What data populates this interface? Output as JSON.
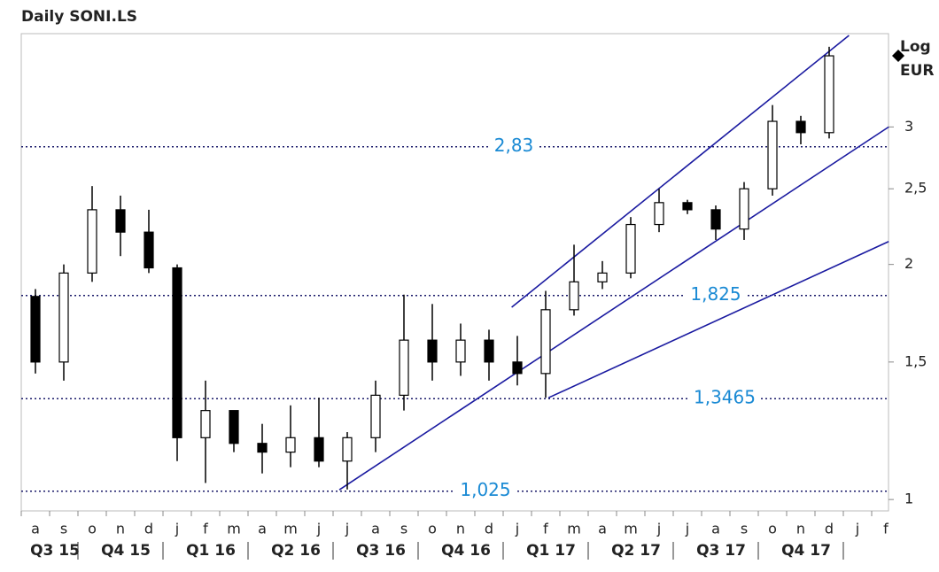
{
  "chart_data": {
    "type": "candlestick",
    "title": "Daily SONI.LS",
    "scale_label": "Log",
    "currency": "EUR",
    "log_scale": true,
    "categories": [
      "a",
      "s",
      "o",
      "n",
      "d",
      "j",
      "f",
      "m",
      "a",
      "m",
      "j",
      "j",
      "a",
      "s",
      "o",
      "n",
      "d",
      "j",
      "f",
      "m",
      "a",
      "m",
      "j",
      "j",
      "a",
      "s",
      "o",
      "n",
      "d",
      "j",
      "f"
    ],
    "quarters": [
      "Q3 15",
      "Q4 15",
      "Q1 16",
      "Q2 16",
      "Q3 16",
      "Q4 16",
      "Q1 17",
      "Q2 17",
      "Q3 17",
      "Q4 17"
    ],
    "series": {
      "open": [
        1.82,
        1.5,
        1.95,
        2.35,
        2.2,
        1.98,
        1.2,
        1.3,
        1.18,
        1.15,
        1.2,
        1.12,
        1.2,
        1.36,
        1.6,
        1.5,
        1.6,
        1.5,
        1.45,
        1.75,
        1.9,
        1.95,
        2.25,
        2.4,
        2.35,
        2.22,
        2.5,
        3.05,
        2.95,
        null,
        null
      ],
      "high": [
        1.86,
        2.0,
        2.52,
        2.45,
        2.35,
        2.0,
        1.42,
        1.3,
        1.25,
        1.32,
        1.35,
        1.22,
        1.42,
        1.83,
        1.78,
        1.68,
        1.65,
        1.62,
        1.85,
        2.12,
        2.02,
        2.3,
        2.5,
        2.42,
        2.38,
        2.55,
        3.2,
        3.1,
        3.8,
        null,
        null
      ],
      "low": [
        1.45,
        1.42,
        1.9,
        2.05,
        1.95,
        1.12,
        1.05,
        1.15,
        1.08,
        1.1,
        1.1,
        1.03,
        1.15,
        1.3,
        1.42,
        1.44,
        1.42,
        1.4,
        1.35,
        1.72,
        1.86,
        1.92,
        2.2,
        2.32,
        2.15,
        2.15,
        2.45,
        2.85,
        2.9,
        null,
        null
      ],
      "close": [
        1.5,
        1.95,
        2.35,
        2.2,
        1.98,
        1.2,
        1.3,
        1.18,
        1.15,
        1.2,
        1.12,
        1.2,
        1.36,
        1.6,
        1.5,
        1.6,
        1.5,
        1.45,
        1.75,
        1.9,
        1.95,
        2.25,
        2.4,
        2.35,
        2.22,
        2.5,
        3.05,
        2.95,
        3.7,
        null,
        null
      ]
    },
    "up_color": "#ffffff",
    "down_color": "#000000",
    "level_color": "#1a8ad4",
    "trend_color": "#1a1aa0",
    "levels": [
      {
        "value": 2.83,
        "label": "2,83"
      },
      {
        "value": 1.825,
        "label": "1,825"
      },
      {
        "value": 1.3465,
        "label": "1,3465"
      },
      {
        "value": 1.025,
        "label": "1,025"
      }
    ],
    "trendlines": [
      {
        "x": [
          16.8,
          28.7
        ],
        "y": [
          1.763,
          3.93
        ]
      },
      {
        "x": [
          10.72,
          30.1
        ],
        "y": [
          1.029,
          3.0
        ]
      },
      {
        "x": [
          18.1,
          30.1
        ],
        "y": [
          1.35,
          2.14
        ]
      }
    ],
    "ylim": [
      0.967,
      3.95
    ],
    "yticks": [
      1,
      {
        "value": 1.5,
        "label": "1,5"
      },
      2,
      {
        "value": 2.5,
        "label": "2,5"
      },
      3
    ]
  }
}
